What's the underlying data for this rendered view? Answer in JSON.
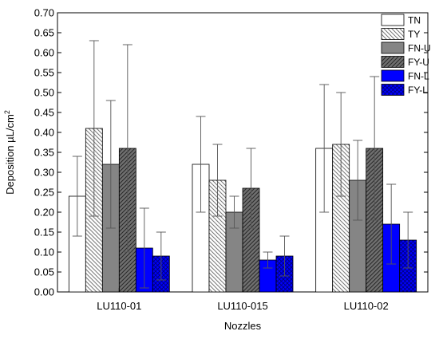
{
  "chart_data": {
    "type": "bar",
    "xlabel": "Nozzles",
    "ylabel": "Deposition µL/cm",
    "ylabel_superscript": "2",
    "ylim": [
      0,
      0.7
    ],
    "yticks": [
      "0.00",
      "0.05",
      "0.10",
      "0.15",
      "0.20",
      "0.25",
      "0.30",
      "0.35",
      "0.40",
      "0.45",
      "0.50",
      "0.55",
      "0.60",
      "0.65",
      "0.70"
    ],
    "categories": [
      "LU110-01",
      "LU110-015",
      "LU110-02"
    ],
    "legend_position": "top-right",
    "error_bars": true,
    "series": [
      {
        "name": "TN",
        "values": [
          0.24,
          0.32,
          0.36
        ],
        "err": [
          0.1,
          0.12,
          0.16
        ],
        "fill": "#ffffff",
        "pattern": "none",
        "pattern_color": "#000000"
      },
      {
        "name": "TY",
        "values": [
          0.41,
          0.28,
          0.37
        ],
        "err": [
          0.22,
          0.09,
          0.13
        ],
        "fill": "#ffffff",
        "pattern": "diag-left",
        "pattern_color": "#777777"
      },
      {
        "name": "FN-U",
        "values": [
          0.32,
          0.2,
          0.28
        ],
        "err": [
          0.16,
          0.04,
          0.1
        ],
        "fill": "#858585",
        "pattern": "none",
        "pattern_color": "#000000"
      },
      {
        "name": "FY-U",
        "values": [
          0.36,
          0.26,
          0.36
        ],
        "err": [
          0.26,
          0.1,
          0.18
        ],
        "fill": "#707070",
        "pattern": "diag-right",
        "pattern_color": "#2a2a2a"
      },
      {
        "name": "FN-L",
        "values": [
          0.11,
          0.08,
          0.17
        ],
        "err": [
          0.1,
          0.02,
          0.1
        ],
        "fill": "#0000ff",
        "pattern": "none",
        "pattern_color": "#000000"
      },
      {
        "name": "FY-L",
        "values": [
          0.09,
          0.09,
          0.13
        ],
        "err": [
          0.06,
          0.05,
          0.07
        ],
        "fill": "#0000ff",
        "pattern": "cross",
        "pattern_color": "#00007a"
      }
    ]
  }
}
